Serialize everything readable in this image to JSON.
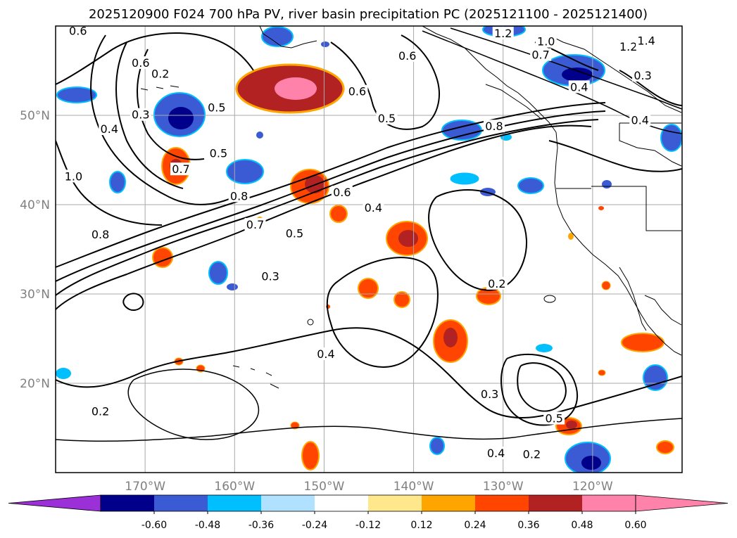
{
  "title": "2025120900 F024 700 hPa PV, river basin precipitation PC (2025121100 - 2025121400)",
  "map": {
    "extent": {
      "lon_min": -180,
      "lon_max": -110,
      "lat_min": 10,
      "lat_max": 60
    },
    "lat_labels": [
      {
        "text": "50°N",
        "lat": 50
      },
      {
        "text": "40°N",
        "lat": 40
      },
      {
        "text": "30°N",
        "lat": 30
      },
      {
        "text": "20°N",
        "lat": 20
      }
    ],
    "lon_labels": [
      {
        "text": "170°W",
        "lon": -170
      },
      {
        "text": "160°W",
        "lon": -160
      },
      {
        "text": "150°W",
        "lon": -150
      },
      {
        "text": "140°W",
        "lon": -140
      },
      {
        "text": "130°W",
        "lon": -130
      },
      {
        "text": "120°W",
        "lon": -120
      }
    ],
    "grid_color": "#a8a8a8"
  },
  "contour_labels": [
    {
      "text": "0.6",
      "lon": -177.5,
      "lat": 59.5
    },
    {
      "text": "0.6",
      "lon": -170.5,
      "lat": 55.9
    },
    {
      "text": "0.2",
      "lon": -168.3,
      "lat": 54.7
    },
    {
      "text": "0.3",
      "lon": -170.5,
      "lat": 50.1
    },
    {
      "text": "0.4",
      "lon": -174.0,
      "lat": 48.5
    },
    {
      "text": "0.5",
      "lon": -162.0,
      "lat": 50.9
    },
    {
      "text": "0.5",
      "lon": -161.8,
      "lat": 45.8
    },
    {
      "text": "0.7",
      "lon": -166.0,
      "lat": 44.0
    },
    {
      "text": "1.0",
      "lon": -178.0,
      "lat": 43.2
    },
    {
      "text": "0.8",
      "lon": -159.5,
      "lat": 41.0
    },
    {
      "text": "0.8",
      "lon": -175.0,
      "lat": 36.7
    },
    {
      "text": "0.7",
      "lon": -157.7,
      "lat": 37.8
    },
    {
      "text": "0.5",
      "lon": -153.3,
      "lat": 36.8
    },
    {
      "text": "0.3",
      "lon": -156.0,
      "lat": 32.0
    },
    {
      "text": "0.6",
      "lon": -148.0,
      "lat": 41.4
    },
    {
      "text": "0.4",
      "lon": -144.5,
      "lat": 39.7
    },
    {
      "text": "0.6",
      "lon": -146.3,
      "lat": 52.7
    },
    {
      "text": "0.5",
      "lon": -143.0,
      "lat": 49.7
    },
    {
      "text": "0.6",
      "lon": -140.7,
      "lat": 56.7
    },
    {
      "text": "1.2",
      "lon": -130.0,
      "lat": 59.2
    },
    {
      "text": "1.0",
      "lon": -125.2,
      "lat": 58.3
    },
    {
      "text": "0.7",
      "lon": -125.8,
      "lat": 56.8
    },
    {
      "text": "1.2",
      "lon": -116.0,
      "lat": 57.7
    },
    {
      "text": "1.4",
      "lon": -114.0,
      "lat": 58.4
    },
    {
      "text": "0.3",
      "lon": -114.4,
      "lat": 54.5
    },
    {
      "text": "0.4",
      "lon": -121.5,
      "lat": 53.2
    },
    {
      "text": "0.4",
      "lon": -114.7,
      "lat": 49.5
    },
    {
      "text": "0.8",
      "lon": -131.0,
      "lat": 48.8
    },
    {
      "text": "0.2",
      "lon": -130.7,
      "lat": 31.2
    },
    {
      "text": "0.4",
      "lon": -149.8,
      "lat": 23.3
    },
    {
      "text": "0.3",
      "lon": -131.5,
      "lat": 18.8
    },
    {
      "text": "0.5",
      "lon": -124.3,
      "lat": 16.1
    },
    {
      "text": "0.4",
      "lon": -130.8,
      "lat": 12.2
    },
    {
      "text": "0.2",
      "lon": -126.8,
      "lat": 12.1
    },
    {
      "text": "0.2",
      "lon": -175.0,
      "lat": 16.9
    }
  ],
  "colorbar": {
    "ticks": [
      "-0.60",
      "-0.48",
      "-0.36",
      "-0.24",
      "-0.12",
      "0.12",
      "0.24",
      "0.36",
      "0.48",
      "0.60"
    ],
    "colors": [
      "#9b30d8",
      "#00008b",
      "#3a5bd4",
      "#00bfff",
      "#b0e2ff",
      "#ffffff",
      "#ffe78c",
      "#ffa500",
      "#ff4500",
      "#b22222",
      "#ff82ab",
      "#ff82ab"
    ],
    "extend": "both"
  },
  "shading": {
    "colors": {
      "neg_light": "#b0e2ff",
      "neg_mid": "#00bfff",
      "neg_strong": "#3a5bd4",
      "neg_max": "#00008b",
      "pos_light": "#ffe78c",
      "pos_mid": "#ffa500",
      "pos_strong": "#ff4500",
      "pos_max": "#b22222",
      "pos_extreme": "#ff82ab"
    }
  }
}
